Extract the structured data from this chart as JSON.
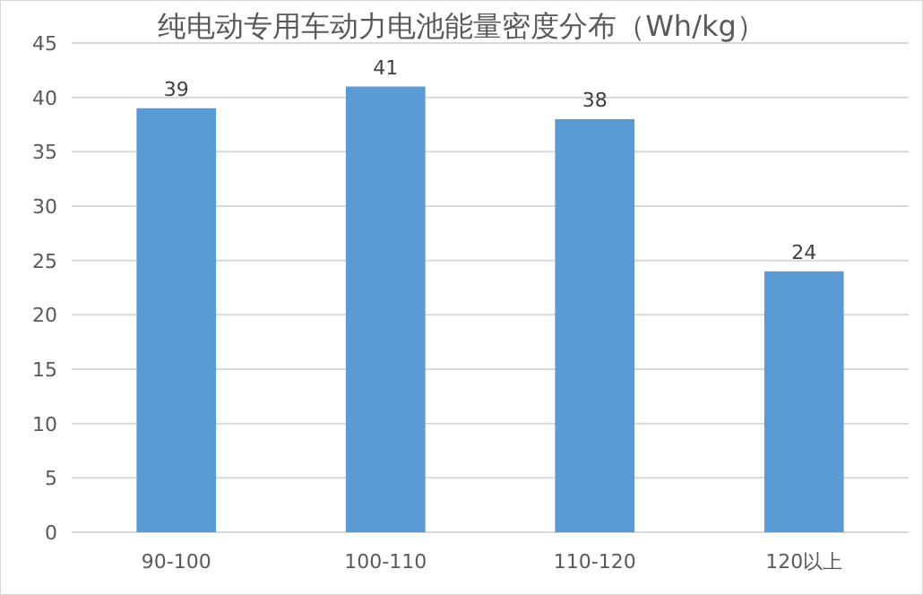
{
  "chart_data": {
    "type": "bar",
    "title": "纯电动专用车动力电池能量密度分布（Wh/kg）",
    "categories": [
      "90-100",
      "100-110",
      "110-120",
      "120以上"
    ],
    "values": [
      39,
      41,
      38,
      24
    ],
    "color": "#5b9bd5",
    "ylim": [
      0,
      45
    ],
    "yticks": [
      0,
      5,
      10,
      15,
      20,
      25,
      30,
      35,
      40,
      45
    ],
    "grid": "y",
    "data_labels": true
  }
}
